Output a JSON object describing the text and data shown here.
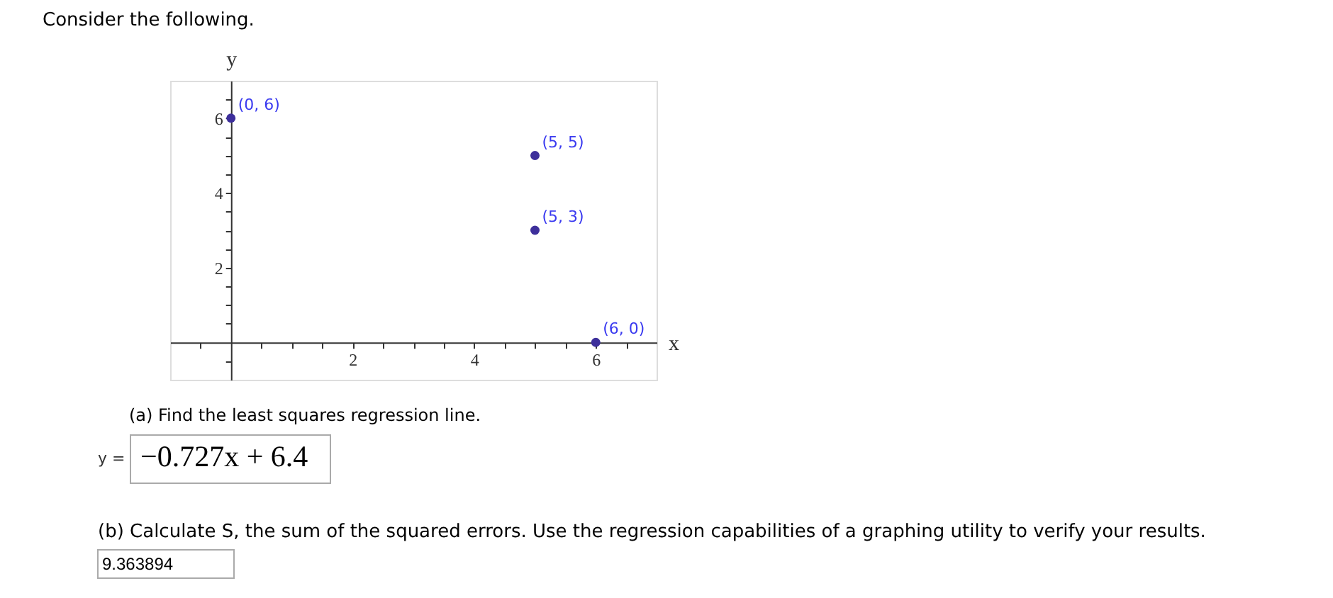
{
  "chart_data": {
    "type": "scatter",
    "title": "Consider the following.",
    "xlabel": "x",
    "ylabel": "y",
    "x": [
      0,
      5,
      5,
      6
    ],
    "series": [
      {
        "color": "#3d2f9b",
        "values": [
          6,
          5,
          3,
          0
        ]
      }
    ],
    "marker": "circle",
    "xlim": [
      -1,
      7
    ],
    "ylim": [
      -1,
      7
    ],
    "xticks": [
      {
        "value": -0.5,
        "label": null
      },
      {
        "value": 0.5,
        "label": null
      },
      {
        "value": 1,
        "label": null
      },
      {
        "value": 1.5,
        "label": null
      },
      2,
      {
        "value": 2.5,
        "label": null
      },
      {
        "value": 3,
        "label": null
      },
      {
        "value": 3.5,
        "label": null
      },
      4,
      {
        "value": 4.5,
        "label": null
      },
      {
        "value": 5,
        "label": null
      },
      {
        "value": 5.5,
        "label": null
      },
      6,
      {
        "value": 6.5,
        "label": null
      }
    ],
    "yticks": [
      {
        "value": -0.5,
        "label": null
      },
      {
        "value": 0.5,
        "label": null
      },
      {
        "value": 1,
        "label": null
      },
      {
        "value": 1.5,
        "label": null
      },
      2,
      {
        "value": 2.5,
        "label": null
      },
      {
        "value": 3,
        "label": null
      },
      {
        "value": 3.5,
        "label": null
      },
      4,
      {
        "value": 4.5,
        "label": null
      },
      {
        "value": 5,
        "label": null
      },
      {
        "value": 5.5,
        "label": null
      },
      6,
      {
        "value": 6.5,
        "label": null
      }
    ],
    "annotations": [
      {
        "text": "(0, 6)",
        "x": 0,
        "y": 6
      },
      {
        "text": "(5, 5)",
        "x": 5,
        "y": 5
      },
      {
        "text": "(5, 3)",
        "x": 5,
        "y": 3
      },
      {
        "text": "(6, 0)",
        "x": 6,
        "y": 0
      },
      "(a) Find the least squares regression line.",
      "y =",
      "−0.727x + 6.4",
      "(b) Calculate S, the sum of the squared errors. Use the regression capabilities of a graphing utility to verify your results.",
      "9.363894"
    ]
  }
}
